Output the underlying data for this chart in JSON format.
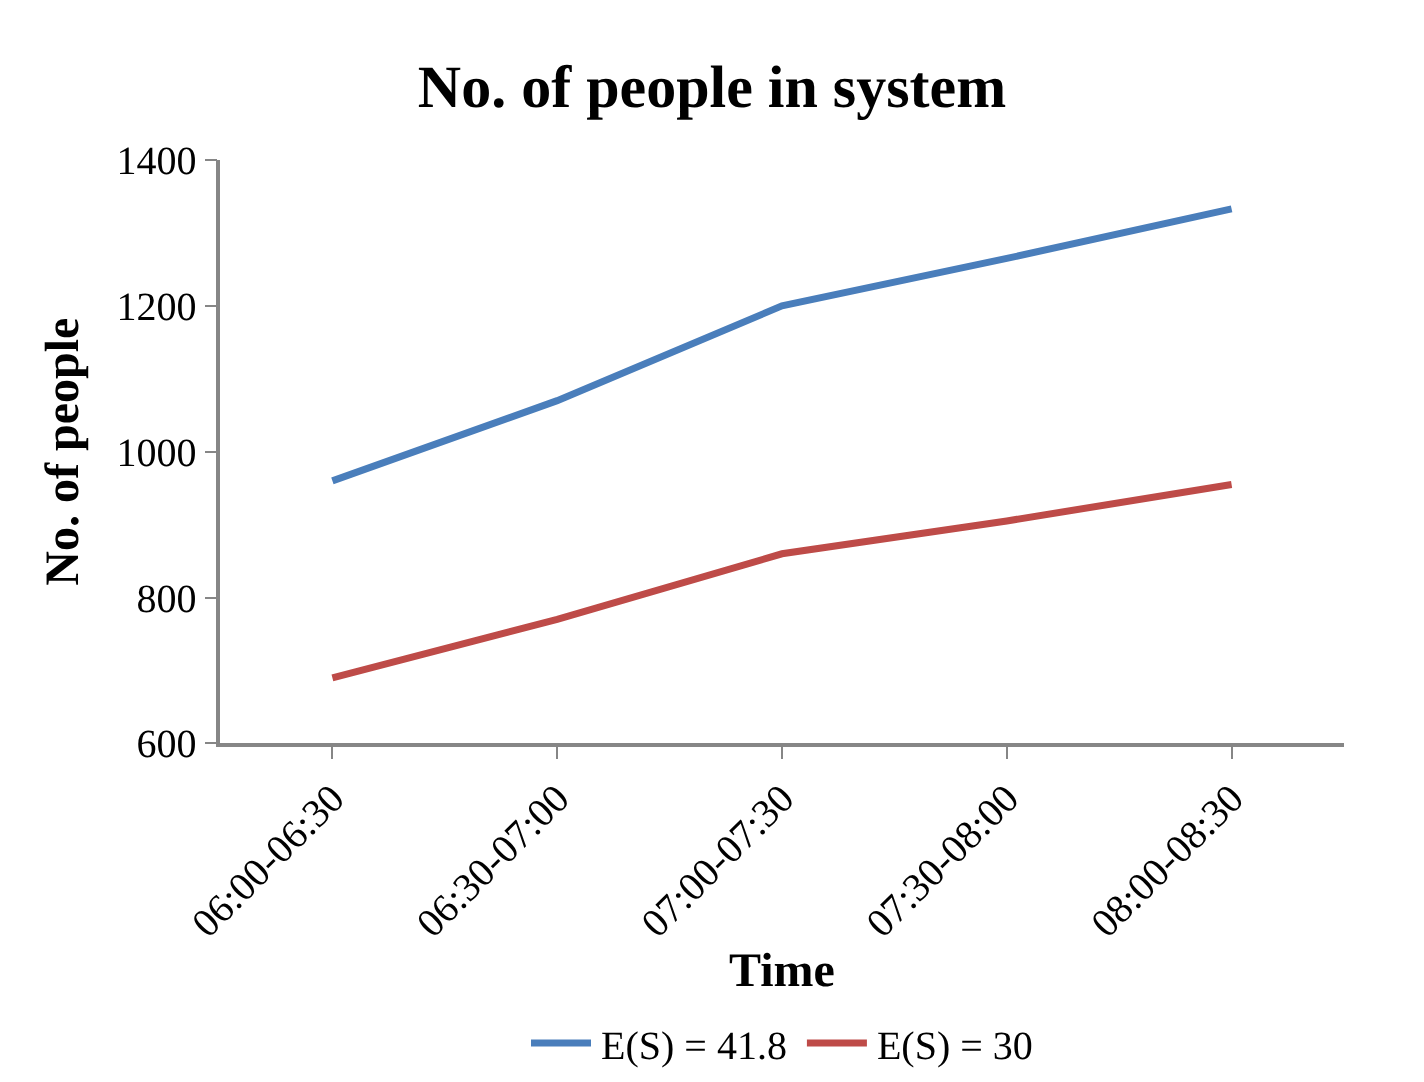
{
  "chart_data": {
    "type": "line",
    "title": "No. of people in system",
    "xlabel": "Time",
    "ylabel": "No. of people",
    "categories": [
      "06:00-06:30",
      "06:30-07:00",
      "07:00-07:30",
      "07:30-08:00",
      "08:00-08:30"
    ],
    "series": [
      {
        "name": "E(S) = 41.8",
        "color": "#4a7ebb",
        "values": [
          960,
          1070,
          1200,
          1265,
          1333
        ]
      },
      {
        "name": "E(S) = 30",
        "color": "#be4b48",
        "values": [
          690,
          770,
          860,
          905,
          955
        ]
      }
    ],
    "ylim": [
      600,
      1400
    ],
    "yticks": [
      600,
      800,
      1000,
      1200,
      1400
    ],
    "grid": false,
    "legend": "bottom",
    "marker": "none",
    "line_style": "solid"
  }
}
